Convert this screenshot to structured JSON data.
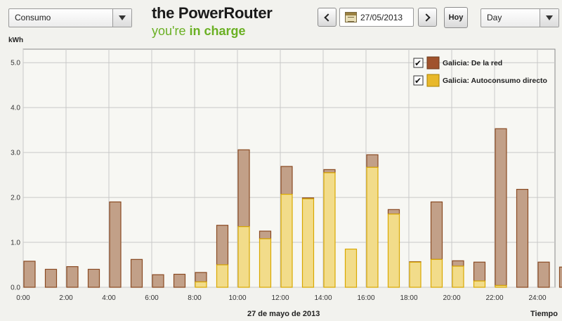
{
  "toolbar": {
    "metric_select": "Consumo",
    "brand_title": "the PowerRouter",
    "brand_tag_prefix": "you're ",
    "brand_tag_bold": "in charge",
    "date_value": "27/05/2013",
    "today_label": "Hoy",
    "period_select": "Day"
  },
  "colors": {
    "grid_red": "#b04a3a",
    "auto_red": "#e8b82a",
    "red_fill": "#c2a088",
    "red_stroke": "#8a4a22",
    "auto_fill": "#f2dc8a",
    "auto_stroke": "#d9a800",
    "legend_red": "#a0522d",
    "legend_auto": "#e8b82a",
    "plot_bg": "#f7f7f3",
    "grid": "#c8c8c8"
  },
  "chart_data": {
    "type": "bar",
    "stacked": true,
    "ylabel": "kWh",
    "xlabel": "Tiempo",
    "date_label": "27 de mayo de 2013",
    "ylim": [
      0,
      5.3
    ],
    "y_ticks": [
      "0.0",
      "1.0",
      "2.0",
      "3.0",
      "4.0",
      "5.0"
    ],
    "x_ticks": [
      "0:00",
      "2:00",
      "4:00",
      "6:00",
      "8:00",
      "10:00",
      "12:00",
      "14:00",
      "16:00",
      "18:00",
      "20:00",
      "22:00",
      "24:00"
    ],
    "legend_position": "top-right",
    "series": [
      {
        "name": "Galicia: Autoconsumo directo",
        "values": [
          0,
          0,
          0,
          0,
          0,
          0,
          0,
          0,
          0.12,
          0.5,
          1.35,
          1.08,
          2.07,
          1.97,
          2.55,
          0.85,
          2.67,
          1.63,
          0.56,
          0.62,
          0.47,
          0.14,
          0.04,
          0,
          0,
          0
        ]
      },
      {
        "name": "Galicia: De la red",
        "values": [
          0.58,
          0.4,
          0.46,
          0.4,
          1.9,
          0.62,
          0.28,
          0.29,
          0.21,
          0.88,
          1.71,
          0.17,
          0.62,
          0.02,
          0.07,
          0,
          0.28,
          0.1,
          0.01,
          1.28,
          0.12,
          0.42,
          3.49,
          2.18,
          0.56,
          0.45
        ]
      }
    ]
  }
}
